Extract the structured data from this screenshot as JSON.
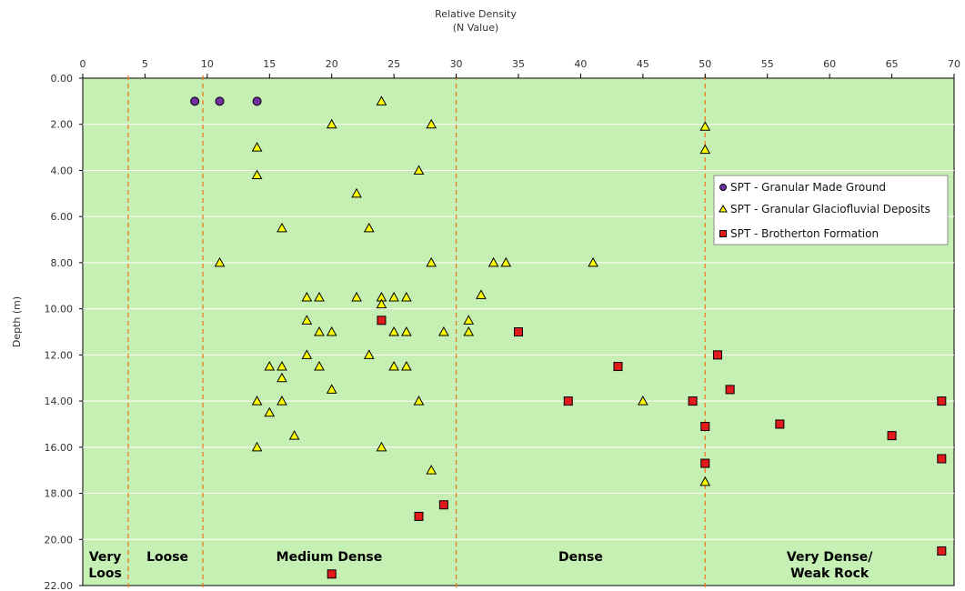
{
  "chart_data": {
    "type": "scatter",
    "title": [
      "Relative Density",
      "(N Value)"
    ],
    "xlabel": "",
    "ylabel": "Depth (m)",
    "xlim": [
      0,
      70
    ],
    "ylim": [
      0,
      22
    ],
    "y_inverted": true,
    "x_axis_position": "top",
    "x_ticks": [
      0,
      5,
      10,
      15,
      20,
      25,
      30,
      35,
      40,
      45,
      50,
      55,
      60,
      65,
      70
    ],
    "x_tick_labels": [
      "0",
      "5",
      "10",
      "15",
      "20",
      "25",
      "30",
      "35",
      "40",
      "45",
      "50",
      "55",
      "60",
      "65",
      "70"
    ],
    "y_ticks": [
      0,
      2,
      4,
      6,
      8,
      10,
      12,
      14,
      16,
      18,
      20,
      22
    ],
    "y_tick_labels": [
      "0.00",
      "2.00",
      "4.00",
      "6.00",
      "8.00",
      "10.00",
      "12.00",
      "14.00",
      "16.00",
      "18.00",
      "20.00",
      "22.00"
    ],
    "plot_background": "#c6efb4",
    "boundaries": [
      3.65,
      9.65,
      30,
      50
    ],
    "boundary_color": "#f07c22",
    "zones": [
      {
        "lines": [
          "Very",
          "Loos"
        ],
        "x_center": 1.8
      },
      {
        "lines": [
          "Loose"
        ],
        "x_center": 6.8
      },
      {
        "lines": [
          "Medium Dense"
        ],
        "x_center": 19.8
      },
      {
        "lines": [
          "Dense"
        ],
        "x_center": 40
      },
      {
        "lines": [
          "Very Dense/",
          "Weak Rock"
        ],
        "x_center": 60
      }
    ],
    "legend_position": "right",
    "series": [
      {
        "name": "SPT - Granular Made Ground",
        "marker": "circle",
        "color": "#7030a0",
        "points": [
          [
            9,
            1
          ],
          [
            11,
            1
          ],
          [
            14,
            1
          ]
        ]
      },
      {
        "name": "SPT - Granular Glaciofluvial Deposits",
        "marker": "triangle",
        "color": "#ffff00",
        "points": [
          [
            24,
            1
          ],
          [
            20,
            2
          ],
          [
            28,
            2
          ],
          [
            50,
            2.1
          ],
          [
            14,
            3
          ],
          [
            50,
            3.1
          ],
          [
            14,
            4.2
          ],
          [
            27,
            4
          ],
          [
            22,
            5
          ],
          [
            16,
            6.5
          ],
          [
            23,
            6.5
          ],
          [
            11,
            8
          ],
          [
            28,
            8
          ],
          [
            33,
            8
          ],
          [
            34,
            8
          ],
          [
            41,
            8
          ],
          [
            18,
            9.5
          ],
          [
            19,
            9.5
          ],
          [
            22,
            9.5
          ],
          [
            24,
            9.5
          ],
          [
            25,
            9.5
          ],
          [
            26,
            9.5
          ],
          [
            32,
            9.4
          ],
          [
            24,
            9.8
          ],
          [
            18,
            10.5
          ],
          [
            31,
            10.5
          ],
          [
            19,
            11
          ],
          [
            20,
            11
          ],
          [
            25,
            11
          ],
          [
            26,
            11
          ],
          [
            29,
            11
          ],
          [
            31,
            11
          ],
          [
            18,
            12
          ],
          [
            23,
            12
          ],
          [
            15,
            12.5
          ],
          [
            16,
            12.5
          ],
          [
            19,
            12.5
          ],
          [
            25,
            12.5
          ],
          [
            26,
            12.5
          ],
          [
            16,
            13
          ],
          [
            20,
            13.5
          ],
          [
            14,
            14
          ],
          [
            16,
            14
          ],
          [
            27,
            14
          ],
          [
            45,
            14
          ],
          [
            15,
            14.5
          ],
          [
            17,
            15.5
          ],
          [
            14,
            16
          ],
          [
            24,
            16
          ],
          [
            28,
            17
          ],
          [
            50,
            17.5
          ]
        ]
      },
      {
        "name": "SPT - Brotherton Formation",
        "marker": "square",
        "color": "#e31a1c",
        "points": [
          [
            24,
            10.5
          ],
          [
            35,
            11
          ],
          [
            51,
            12
          ],
          [
            43,
            12.5
          ],
          [
            52,
            13.5
          ],
          [
            39,
            14
          ],
          [
            49,
            14
          ],
          [
            69,
            14
          ],
          [
            50,
            15.1
          ],
          [
            56,
            15
          ],
          [
            65,
            15.5
          ],
          [
            69,
            16.5
          ],
          [
            50,
            16.7
          ],
          [
            29,
            18.5
          ],
          [
            27,
            19
          ],
          [
            69,
            20.5
          ],
          [
            20,
            21.5
          ]
        ]
      }
    ]
  }
}
